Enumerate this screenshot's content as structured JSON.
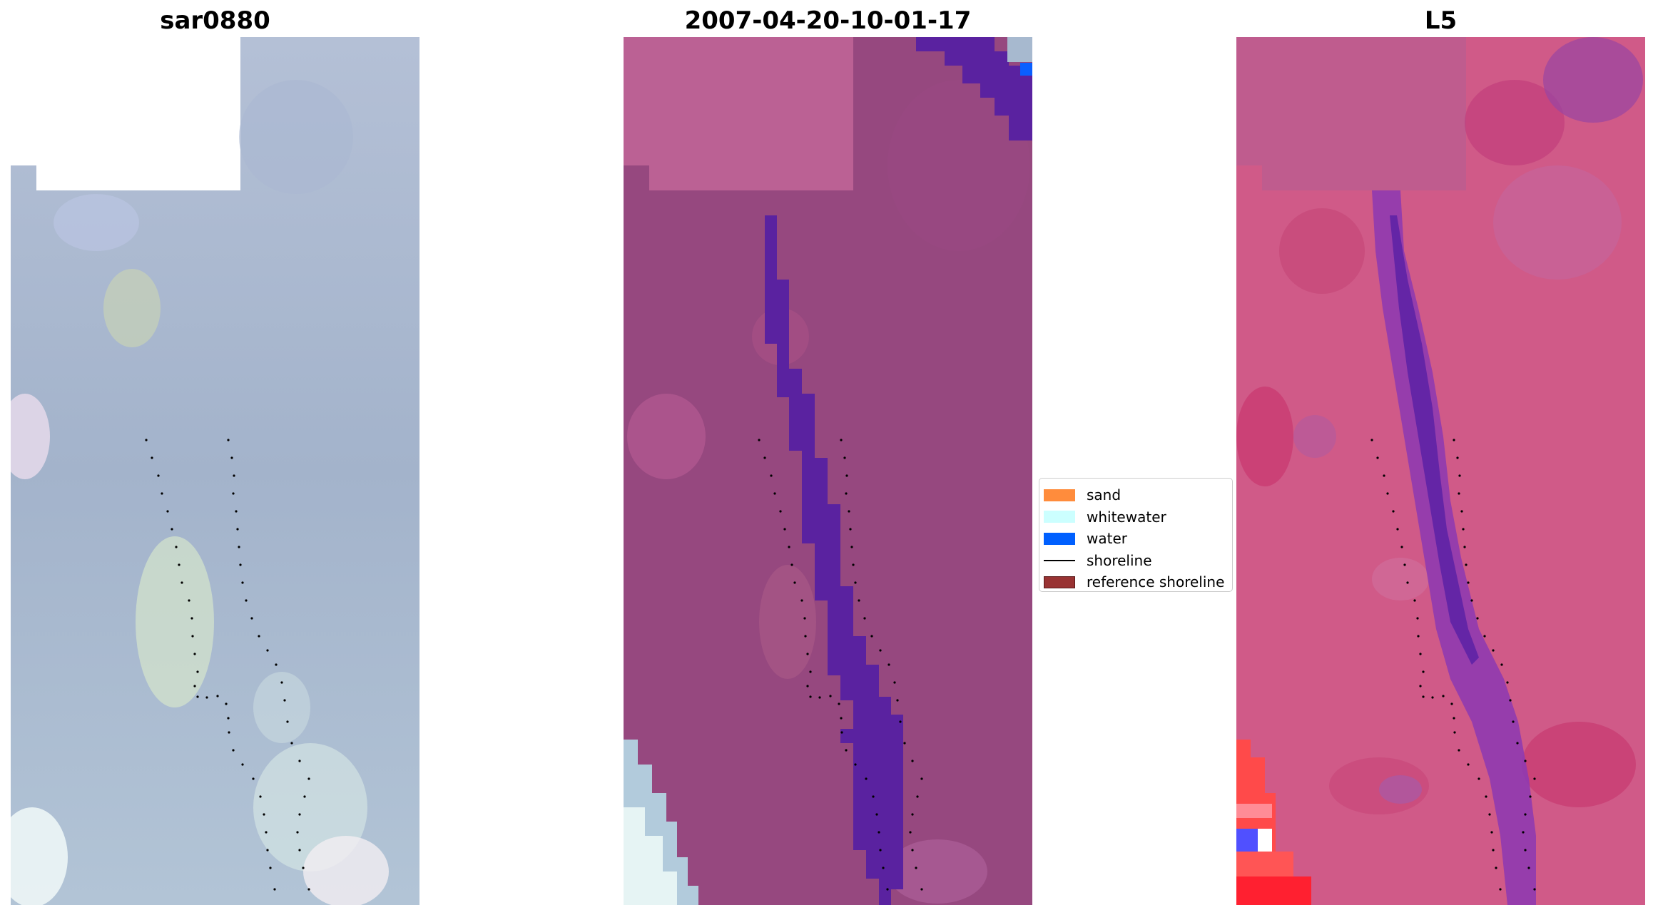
{
  "panels": [
    {
      "title": "sar0880",
      "style": "sar"
    },
    {
      "title": "2007-04-20-10-01-17",
      "style": "classified"
    },
    {
      "title": "L5",
      "style": "index"
    }
  ],
  "legend": {
    "items": [
      {
        "label": "sand",
        "kind": "patch",
        "color": "#ff8c3c"
      },
      {
        "label": "whitewater",
        "kind": "patch",
        "color": "#ccffff"
      },
      {
        "label": "water",
        "kind": "patch",
        "color": "#0060ff"
      },
      {
        "label": "shoreline",
        "kind": "line",
        "color": "#000000"
      },
      {
        "label": "reference shoreline",
        "kind": "patch",
        "color": "#993333"
      }
    ]
  },
  "colors": {
    "sar_base": "#a6b5cc",
    "classified_base": "#96487f",
    "classified_top": "#bb6194",
    "classified_water": "#5a22a0",
    "index_base": "#d4567f",
    "index_top": "#bf5a8f",
    "index_channel": "#6d2aaa",
    "shoreline": "#000000"
  }
}
